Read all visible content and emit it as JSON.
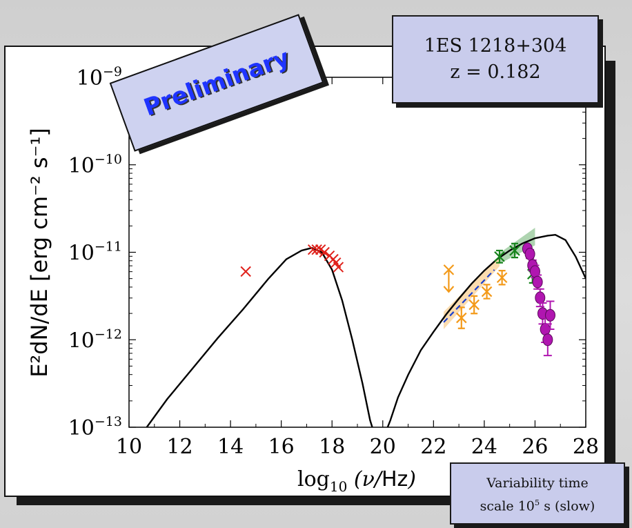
{
  "source_box": {
    "line1": "1ES 1218+304",
    "line2": "z = 0.182"
  },
  "preliminary_label": "Preliminary",
  "variability_box": {
    "line1": "Variability time",
    "line2_prefix": "scale 10",
    "line2_exp": "5",
    "line2_suffix": " s (slow)"
  },
  "colors": {
    "model": "#000000",
    "optical_xray": "#e0211b",
    "gev_orange": "#f39a1a",
    "gev_green": "#17831c",
    "fermi_fit": "#1a3fd0",
    "tev_magenta": "#b016b0",
    "panel_bg": "#c9ccec",
    "prelim_text": "#1f34ff"
  },
  "chart_data": {
    "type": "scatter",
    "xlabel": "log10 (ν/Hz)",
    "ylabel": "E²dN/dE [erg cm⁻² s⁻¹]",
    "xlim": [
      10,
      28
    ],
    "ylim_log10": [
      -13,
      -9
    ],
    "y_scale": "log",
    "x_ticks": [
      10,
      12,
      14,
      16,
      18,
      20,
      22,
      24,
      26,
      28
    ],
    "x_tick_labels": [
      "10",
      "12",
      "14",
      "16",
      "18",
      "20",
      "22",
      "24",
      "26",
      "28"
    ],
    "y_ticks": [
      -13,
      -12,
      -11,
      -10,
      -9
    ],
    "y_tick_base": "10",
    "y_tick_exponents": [
      "−13",
      "−12",
      "−11",
      "−10",
      "−9"
    ],
    "series": [
      {
        "kind": "line",
        "color": "#000000",
        "x": [
          10.7,
          11.5,
          12.5,
          13.5,
          14.5,
          15.5,
          16.2,
          16.8,
          17.2,
          17.6,
          18.0,
          18.4,
          18.8,
          19.2,
          19.5,
          19.8,
          20.0,
          20.3,
          20.6,
          21.0,
          21.5,
          22.0,
          22.5,
          23.0,
          23.5,
          24.0,
          24.5,
          25.0,
          25.5,
          26.0,
          26.5,
          26.8,
          27.2,
          27.6,
          28.0
        ],
        "y": [
          -13.0,
          -12.68,
          -12.33,
          -11.98,
          -11.65,
          -11.3,
          -11.08,
          -10.98,
          -10.95,
          -11.0,
          -11.2,
          -11.55,
          -12.0,
          -12.5,
          -12.92,
          -13.2,
          -13.14,
          -12.92,
          -12.66,
          -12.4,
          -12.12,
          -11.91,
          -11.71,
          -11.53,
          -11.36,
          -11.21,
          -11.08,
          -10.98,
          -10.9,
          -10.84,
          -10.81,
          -10.8,
          -10.86,
          -11.05,
          -11.3
        ]
      },
      {
        "kind": "x-markers",
        "color": "#e0211b",
        "x": [
          14.6,
          17.25,
          17.4,
          17.55,
          17.7,
          17.9,
          18.05,
          18.15,
          18.25
        ],
        "y": [
          -11.22,
          -10.97,
          -10.97,
          -10.97,
          -11.0,
          -11.04,
          -11.08,
          -11.12,
          -11.17
        ]
      },
      {
        "kind": "errorbar-x",
        "color": "#f39a1a",
        "x": [
          23.1,
          23.6,
          24.1,
          24.7
        ],
        "y": [
          -11.75,
          -11.6,
          -11.45,
          -11.29
        ],
        "yerr": [
          0.12,
          0.1,
          0.08,
          0.08
        ]
      },
      {
        "kind": "upper-limit",
        "color": "#f39a1a",
        "x": [
          22.6
        ],
        "y": [
          -11.2
        ]
      },
      {
        "kind": "errorbar-x",
        "color": "#17831c",
        "x": [
          24.6,
          25.2,
          25.9
        ],
        "y": [
          -11.05,
          -10.98,
          -11.25
        ],
        "yerr": [
          0.07,
          0.08,
          0.1
        ]
      },
      {
        "kind": "circles",
        "color": "#b016b0",
        "x": [
          25.7,
          25.8,
          25.9,
          26.0,
          26.1,
          26.2,
          26.3,
          26.4,
          26.5,
          26.6
        ],
        "y": [
          -10.96,
          -11.02,
          -11.15,
          -11.22,
          -11.34,
          -11.52,
          -11.7,
          -11.88,
          -12.0,
          -11.72
        ],
        "yerr": [
          0.04,
          0.05,
          0.06,
          0.07,
          0.08,
          0.1,
          0.12,
          0.15,
          0.18,
          0.16
        ]
      },
      {
        "kind": "bowtie",
        "color": "#f39a1a",
        "x": [
          22.4,
          24.6
        ],
        "y_center": [
          -11.78,
          -11.1
        ],
        "halfwidth_ends": [
          0.1,
          0.06
        ]
      },
      {
        "kind": "bowtie",
        "color": "#17831c",
        "x": [
          24.6,
          26.0
        ],
        "y_center": [
          -11.07,
          -10.82
        ],
        "halfwidth_ends": [
          0.06,
          0.1
        ]
      },
      {
        "kind": "dashed-line",
        "color": "#1a3fd0",
        "x": [
          22.4,
          24.4
        ],
        "y": [
          -11.8,
          -11.2
        ]
      }
    ]
  }
}
